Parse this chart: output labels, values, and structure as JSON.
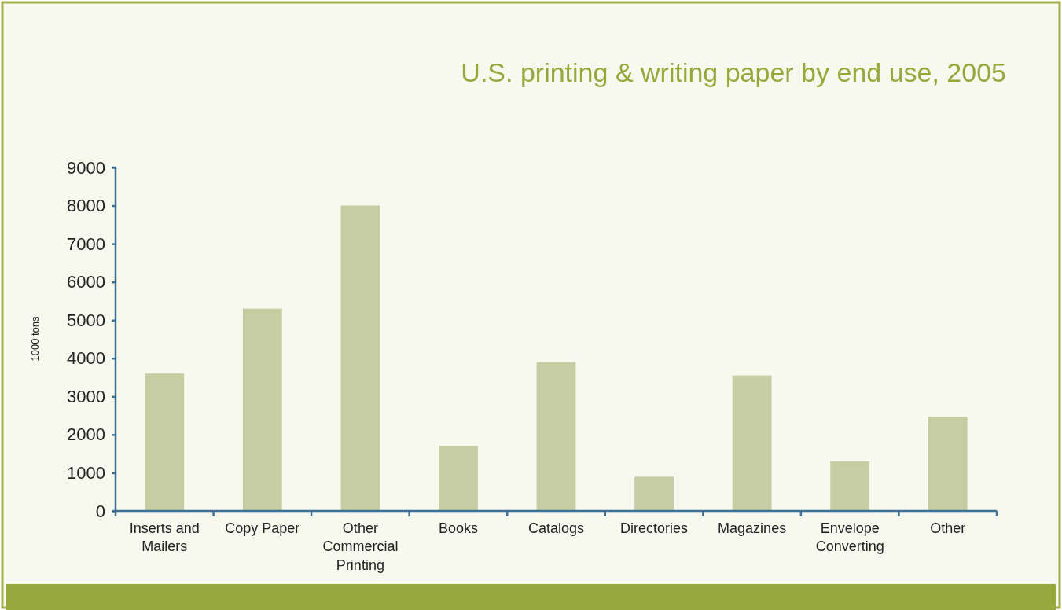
{
  "chart_data": {
    "type": "bar",
    "title": "U.S. printing & writing paper by end use, 2005",
    "ylabel": "1000 tons",
    "categories": [
      "Inserts and Mailers",
      "Copy Paper",
      "Other Commercial Printing",
      "Books",
      "Catalogs",
      "Directories",
      "Magazines",
      "Envelope Converting",
      "Other"
    ],
    "values": [
      3600,
      5300,
      8000,
      1700,
      3900,
      900,
      3550,
      1300,
      2470
    ],
    "color": "#c6cda3",
    "ylim": [
      0,
      9000
    ],
    "yticks": [
      0,
      1000,
      2000,
      3000,
      4000,
      5000,
      6000,
      7000,
      8000,
      9000
    ],
    "grid": false
  }
}
